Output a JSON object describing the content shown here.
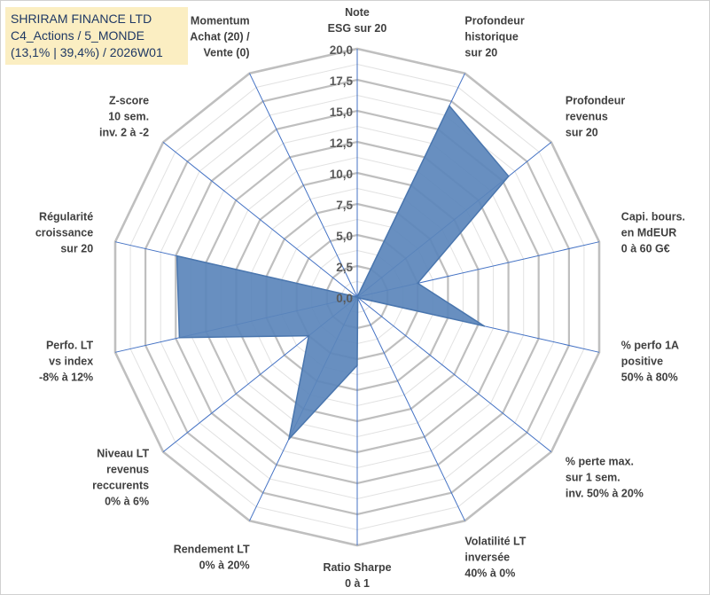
{
  "title_box": {
    "line1": "SHRIRAM FINANCE LTD",
    "line2": "C4_Actions / 5_MONDE",
    "line3": "(13,1% | 39,4%) / 2026W01"
  },
  "colors": {
    "fill": "#5b86bb",
    "stroke": "#4a76ae",
    "grid": "#bfbfbf",
    "spoke": "#4472c4",
    "title_bg": "#fbeec2",
    "title_text": "#1f3864"
  },
  "chart_data": {
    "type": "radar",
    "title": "SHRIRAM FINANCE LTD",
    "rlim": [
      0,
      20
    ],
    "ticks": [
      "0,0",
      "2,5",
      "5,0",
      "7,5",
      "10,0",
      "12,5",
      "15,0",
      "17,5",
      "20,0"
    ],
    "tick_values": [
      0,
      2.5,
      5,
      7.5,
      10,
      12.5,
      15,
      17.5,
      20
    ],
    "categories": [
      [
        "Note",
        "ESG sur 20"
      ],
      [
        "Profondeur",
        "historique",
        "sur 20"
      ],
      [
        "Profondeur",
        "revenus",
        "sur 20"
      ],
      [
        "Capi. bours.",
        "en MdEUR",
        "0 à 60 G€"
      ],
      [
        "% perfo 1A",
        "positive",
        "50% à 80%"
      ],
      [
        "% perte max.",
        "sur 1 sem.",
        "inv. 50% à 20%"
      ],
      [
        "Volatilité LT",
        "inversée",
        "40% à 0%"
      ],
      [
        "Ratio Sharpe",
        "0 à 1"
      ],
      [
        "Rendement LT",
        "0% à 20%"
      ],
      [
        "Niveau LT",
        "revenus",
        "reccurents",
        "0% à 6%"
      ],
      [
        "Perfo. LT",
        "vs index",
        "-8% à 12%"
      ],
      [
        "Régularité",
        "croissance",
        "sur 20"
      ],
      [
        "Z-score",
        "10 sem.",
        "inv. 2 à -2"
      ],
      [
        "Momentum",
        "Achat (20) /",
        "Vente (0)"
      ]
    ],
    "series": [
      {
        "name": "SHRIRAM FINANCE LTD",
        "values": [
          0,
          17.1,
          15.6,
          5.0,
          10.5,
          0.1,
          0.1,
          5.5,
          12.7,
          5.0,
          14.7,
          14.9,
          0,
          0
        ]
      }
    ]
  }
}
